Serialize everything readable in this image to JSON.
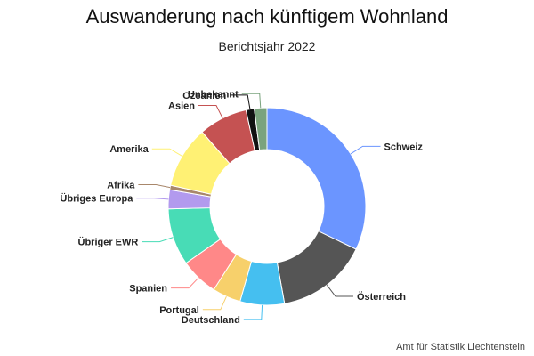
{
  "chart_data": {
    "type": "pie",
    "title": "Auswanderung nach künftigem Wohnland",
    "subtitle": "Berichtsjahr 2022",
    "credit": "Amt für Statistik Liechtenstein",
    "donut": true,
    "slices": [
      {
        "label": "Schweiz",
        "value": 31.0,
        "color": "#6b95ff"
      },
      {
        "label": "Österreich",
        "value": 14.5,
        "color": "#555555"
      },
      {
        "label": "Deutschland",
        "value": 7.0,
        "color": "#45bff0"
      },
      {
        "label": "Portugal",
        "value": 4.5,
        "color": "#f7d06b"
      },
      {
        "label": "Spanien",
        "value": 6.0,
        "color": "#ff8888"
      },
      {
        "label": "Übriger EWR",
        "value": 9.0,
        "color": "#48dcb6"
      },
      {
        "label": "Übriges Europa",
        "value": 3.0,
        "color": "#b29aee"
      },
      {
        "label": "Afrika",
        "value": 0.7,
        "color": "#a8876b"
      },
      {
        "label": "Amerika",
        "value": 9.8,
        "color": "#fff174"
      },
      {
        "label": "Asien",
        "value": 7.7,
        "color": "#c55252"
      },
      {
        "label": "Ozeanien",
        "value": 1.3,
        "color": "#111111"
      },
      {
        "label": "Unbekannt",
        "value": 2.0,
        "color": "#7aa37d"
      }
    ]
  }
}
